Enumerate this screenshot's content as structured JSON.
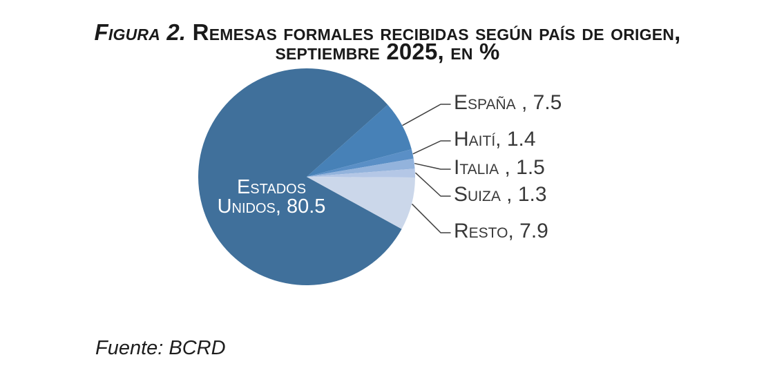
{
  "title": {
    "prefix": "Figura 2.",
    "line1_rest": " Remesas formales recibidas según país de origen,",
    "line2": "septiembre 2025, en %"
  },
  "source": "Fuente: BCRD",
  "chart_data": {
    "type": "pie",
    "title": "Figura 2. Remesas formales recibidas según país de origen, septiembre 2025, en %",
    "unit": "%",
    "direction": "clockwise",
    "start_angle_deg": 118.8,
    "legend": "none",
    "slices": [
      {
        "label": "Estados Unidos",
        "value": 80.5,
        "display": "Estados Unidos, 80.5",
        "color": "#40709B",
        "label_position": "inside"
      },
      {
        "label": "España",
        "value": 7.5,
        "display": "España , 7.5",
        "color": "#4781B7",
        "label_position": "outside"
      },
      {
        "label": "Haití",
        "value": 1.4,
        "display": "Haití, 1.4",
        "color": "#5A8FC6",
        "label_position": "outside"
      },
      {
        "label": "Italia",
        "value": 1.5,
        "display": "Italia , 1.5",
        "color": "#93B3DC",
        "label_position": "outside"
      },
      {
        "label": "Suiza",
        "value": 1.3,
        "display": "Suiza , 1.3",
        "color": "#B4C7E6",
        "label_position": "outside"
      },
      {
        "label": "Resto",
        "value": 7.9,
        "display": "Resto, 7.9",
        "color": "#CBD7EA",
        "label_position": "outside"
      }
    ],
    "inside_label_lines": [
      "Estados",
      "Unidos, 80.5"
    ],
    "inside_label_color": "#FFFFFF",
    "outside_label_color": "#383838",
    "leader_line_color": "#3F3F3F"
  }
}
